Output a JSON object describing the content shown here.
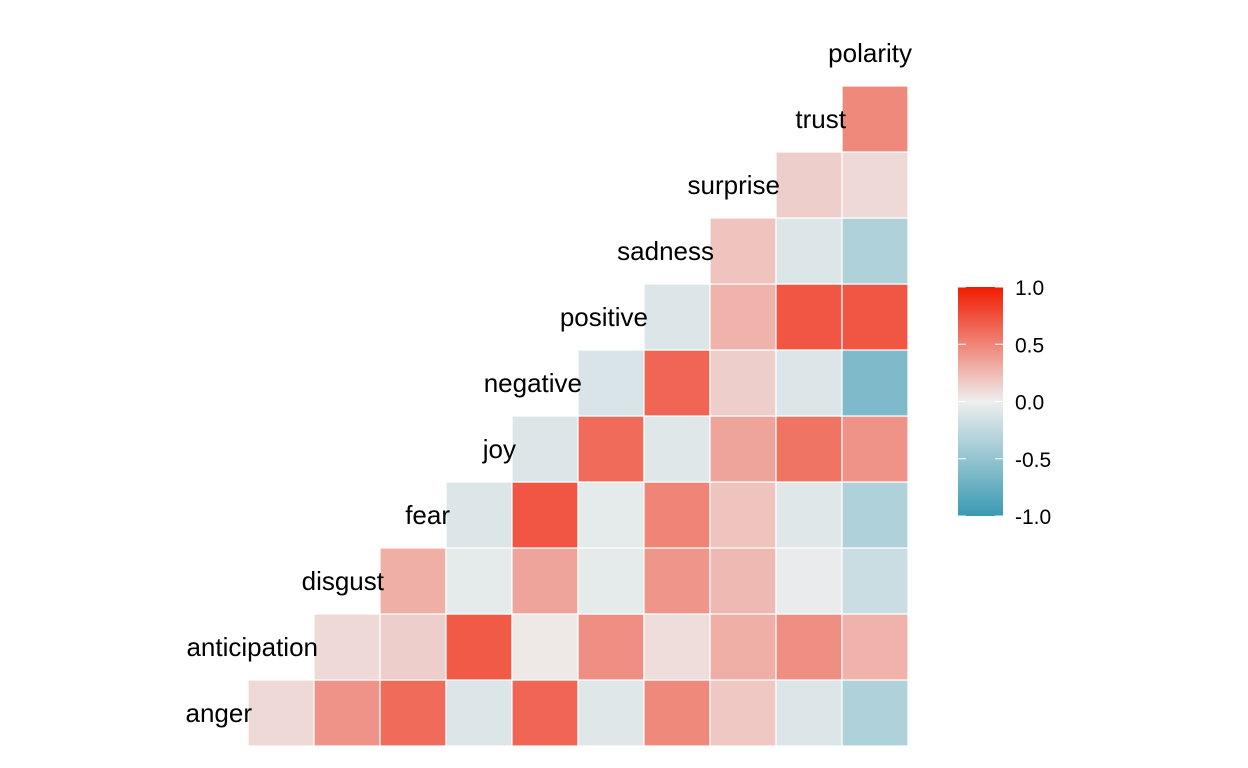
{
  "chart_data": {
    "type": "heatmap",
    "variables": [
      "anger",
      "anticipation",
      "disgust",
      "fear",
      "joy",
      "negative",
      "positive",
      "sadness",
      "surprise",
      "trust",
      "polarity"
    ],
    "cells": [
      {
        "row": "anger",
        "col": "anger",
        "value": 0.1
      },
      {
        "row": "anger",
        "col": "anticipation",
        "value": 0.43
      },
      {
        "row": "anger",
        "col": "disgust",
        "value": 0.62
      },
      {
        "row": "anger",
        "col": "fear",
        "value": -0.1
      },
      {
        "row": "anger",
        "col": "joy",
        "value": 0.65
      },
      {
        "row": "anger",
        "col": "negative",
        "value": -0.08
      },
      {
        "row": "anger",
        "col": "positive",
        "value": 0.48
      },
      {
        "row": "anger",
        "col": "sadness",
        "value": 0.18
      },
      {
        "row": "anger",
        "col": "surprise",
        "value": -0.1
      },
      {
        "row": "anger",
        "col": "trust",
        "value": -0.35
      },
      {
        "row": "anticipation",
        "col": "anticipation",
        "value": 0.1
      },
      {
        "row": "anticipation",
        "col": "disgust",
        "value": 0.15
      },
      {
        "row": "anticipation",
        "col": "fear",
        "value": 0.7
      },
      {
        "row": "anticipation",
        "col": "joy",
        "value": 0.03
      },
      {
        "row": "anticipation",
        "col": "negative",
        "value": 0.45
      },
      {
        "row": "anticipation",
        "col": "positive",
        "value": 0.08
      },
      {
        "row": "anticipation",
        "col": "sadness",
        "value": 0.3
      },
      {
        "row": "anticipation",
        "col": "surprise",
        "value": 0.45
      },
      {
        "row": "anticipation",
        "col": "trust",
        "value": 0.28
      },
      {
        "row": "disgust",
        "col": "disgust",
        "value": 0.3
      },
      {
        "row": "disgust",
        "col": "fear",
        "value": -0.05
      },
      {
        "row": "disgust",
        "col": "joy",
        "value": 0.35
      },
      {
        "row": "disgust",
        "col": "negative",
        "value": -0.05
      },
      {
        "row": "disgust",
        "col": "positive",
        "value": 0.42
      },
      {
        "row": "disgust",
        "col": "sadness",
        "value": 0.25
      },
      {
        "row": "disgust",
        "col": "surprise",
        "value": -0.03
      },
      {
        "row": "disgust",
        "col": "trust",
        "value": -0.2
      },
      {
        "row": "fear",
        "col": "fear",
        "value": -0.1
      },
      {
        "row": "fear",
        "col": "joy",
        "value": 0.72
      },
      {
        "row": "fear",
        "col": "negative",
        "value": -0.05
      },
      {
        "row": "fear",
        "col": "positive",
        "value": 0.5
      },
      {
        "row": "fear",
        "col": "sadness",
        "value": 0.2
      },
      {
        "row": "fear",
        "col": "surprise",
        "value": -0.08
      },
      {
        "row": "fear",
        "col": "trust",
        "value": -0.35
      },
      {
        "row": "joy",
        "col": "joy",
        "value": -0.1
      },
      {
        "row": "joy",
        "col": "negative",
        "value": 0.62
      },
      {
        "row": "joy",
        "col": "positive",
        "value": -0.08
      },
      {
        "row": "joy",
        "col": "sadness",
        "value": 0.35
      },
      {
        "row": "joy",
        "col": "surprise",
        "value": 0.58
      },
      {
        "row": "joy",
        "col": "trust",
        "value": 0.43
      },
      {
        "row": "negative",
        "col": "negative",
        "value": -0.12
      },
      {
        "row": "negative",
        "col": "positive",
        "value": 0.65
      },
      {
        "row": "negative",
        "col": "sadness",
        "value": 0.15
      },
      {
        "row": "negative",
        "col": "surprise",
        "value": -0.1
      },
      {
        "row": "negative",
        "col": "trust",
        "value": -0.62
      },
      {
        "row": "positive",
        "col": "positive",
        "value": -0.1
      },
      {
        "row": "positive",
        "col": "sadness",
        "value": 0.28
      },
      {
        "row": "positive",
        "col": "surprise",
        "value": 0.72
      },
      {
        "row": "positive",
        "col": "trust",
        "value": 0.72
      },
      {
        "row": "sadness",
        "col": "sadness",
        "value": 0.2
      },
      {
        "row": "sadness",
        "col": "surprise",
        "value": -0.1
      },
      {
        "row": "sadness",
        "col": "trust",
        "value": -0.35
      },
      {
        "row": "surprise",
        "col": "surprise",
        "value": 0.15
      },
      {
        "row": "surprise",
        "col": "trust",
        "value": 0.1
      },
      {
        "row": "trust",
        "col": "trust",
        "value": 0.48
      }
    ],
    "legend": {
      "placement": "right",
      "ticks": [
        "1.0",
        "0.5",
        "0.0",
        "-0.5",
        "-1.0"
      ],
      "range": [
        -1,
        1
      ],
      "colors": {
        "low": "#3A9AB2",
        "mid": "#EEEEEE",
        "high": "#F11B00"
      }
    }
  }
}
